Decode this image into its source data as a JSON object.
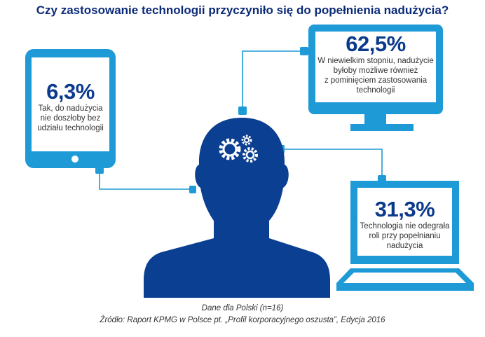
{
  "title": "Czy zastosowanie technologii przyczyniło się do popełnienia nadużycia?",
  "colors": {
    "device": "#1e9ad6",
    "head": "#0b3f91",
    "title": "#0b2a78",
    "percent": "#0b3a8c"
  },
  "items": [
    {
      "device": "tablet",
      "percent": "6,3%",
      "value": 6.3,
      "text_lines": [
        "Tak, do nadużycia",
        "nie doszłoby bez",
        "udziału technologii"
      ]
    },
    {
      "device": "monitor",
      "percent": "62,5%",
      "value": 62.5,
      "text_lines": [
        "W niewielkim stopniu, nadużycie",
        "byłoby możliwe również",
        "z pominięciem zastosowania",
        "technologii"
      ]
    },
    {
      "device": "laptop",
      "percent": "31,3%",
      "value": 31.3,
      "text_lines": [
        "Technologia nie odegrała",
        "roli przy popełnianiu",
        "nadużycia"
      ]
    }
  ],
  "icons": [
    "tablet-icon",
    "monitor-icon",
    "laptop-icon",
    "head-silhouette-icon",
    "gears-icon"
  ],
  "footer": {
    "line1": "Dane dla Polski (n=16)",
    "line2": "Źródło: Raport KPMG w Polsce pt. „Profil korporacyjnego oszusta”, Edycja 2016"
  }
}
